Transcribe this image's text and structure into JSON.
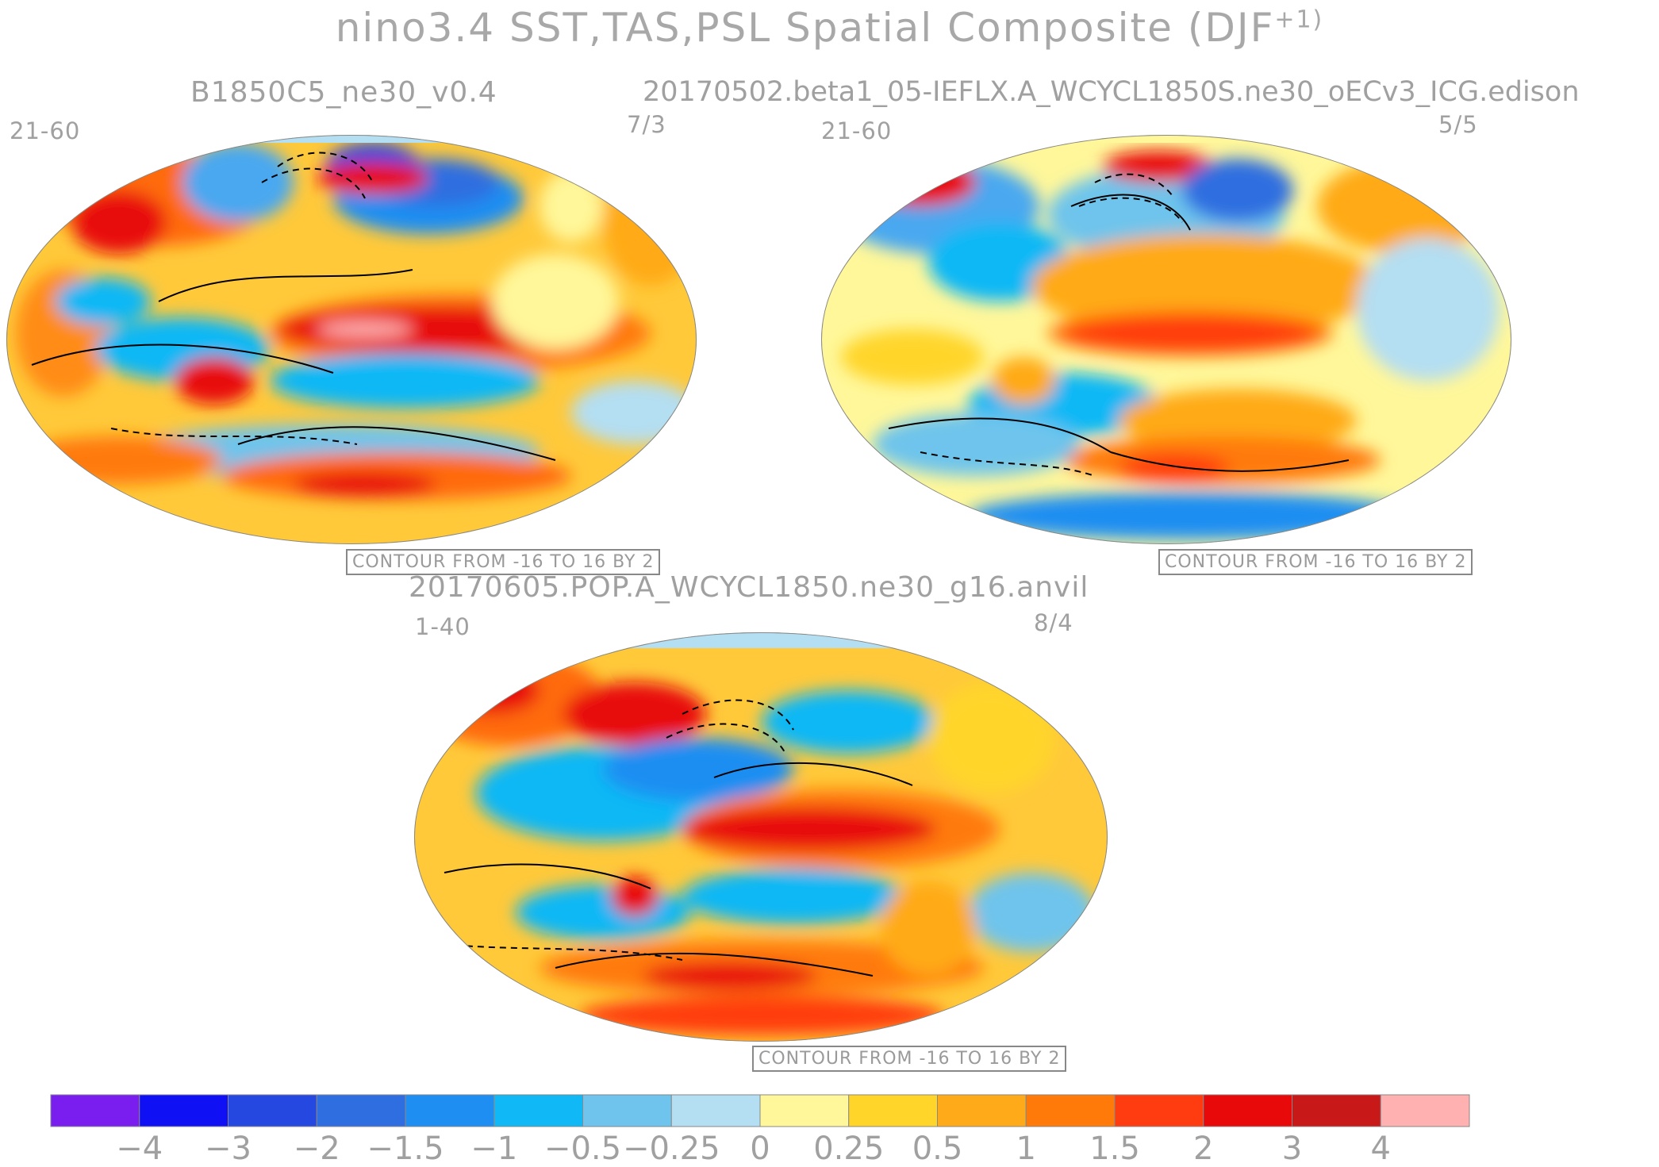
{
  "title_main": "nino3.4 SST,TAS,PSL Spatial Composite (DJF",
  "title_sup": "+1)",
  "panels": [
    {
      "title": "B1850C5_ne30_v0.4",
      "years": "21-60",
      "ratio": "7/3",
      "contour_note": "CONTOUR FROM -16 TO 16 BY 2"
    },
    {
      "title": "20170502.beta1_05-IEFLX.A_WCYCL1850S.ne30_oECv3_ICG.edison",
      "years": "21-60",
      "ratio": "5/5",
      "contour_note": "CONTOUR FROM -16 TO 16 BY 2"
    },
    {
      "title": "20170605.POP.A_WCYCL1850.ne30_g16.anvil",
      "years": "1-40",
      "ratio": "8/4",
      "contour_note": "CONTOUR FROM -16 TO 16 BY 2"
    }
  ],
  "colorbar": {
    "colors": [
      "#7a1ef0",
      "#1010f5",
      "#2448e0",
      "#2f6ee0",
      "#1e8ef2",
      "#10b8f5",
      "#6ec4ec",
      "#b4def2",
      "#fff79a",
      "#ffd52a",
      "#ffaa18",
      "#ff7a08",
      "#ff3c10",
      "#e80a0a",
      "#c81818",
      "#ffb0b0"
    ],
    "tick_labels": [
      "-4",
      "-3",
      "-2",
      "-1.5",
      "-1",
      "-0.5",
      "-0.25",
      "0",
      "0.25",
      "0.5",
      "1",
      "1.5",
      "2",
      "3",
      "4"
    ]
  }
}
